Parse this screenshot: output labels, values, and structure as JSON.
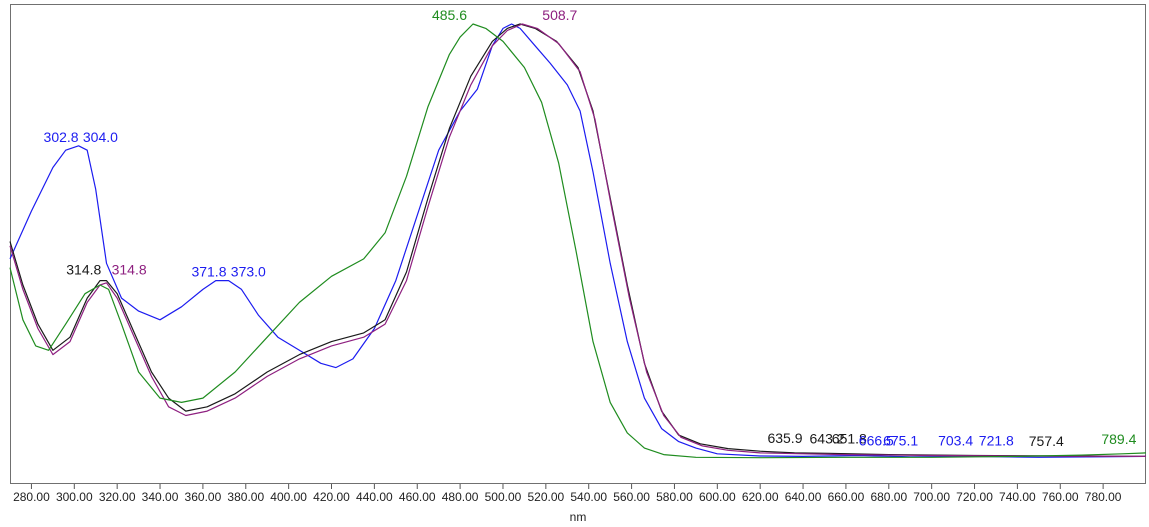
{
  "chart_data": {
    "type": "line",
    "xlabel": "nm",
    "ylabel": "",
    "xlim": [
      270,
      800
    ],
    "ylim": [
      0,
      1
    ],
    "grid": false,
    "x_ticks": [
      "280.00",
      "300.00",
      "320.00",
      "340.00",
      "360.00",
      "380.00",
      "400.00",
      "420.00",
      "440.00",
      "460.00",
      "480.00",
      "500.00",
      "520.00",
      "540.00",
      "560.00",
      "580.00",
      "600.00",
      "620.00",
      "640.00",
      "660.00",
      "680.00",
      "700.00",
      "720.00",
      "740.00",
      "760.00",
      "780.00"
    ],
    "x_tick_values": [
      280,
      300,
      320,
      340,
      360,
      380,
      400,
      420,
      440,
      460,
      480,
      500,
      520,
      540,
      560,
      580,
      600,
      620,
      640,
      660,
      680,
      700,
      720,
      740,
      760,
      780
    ],
    "series": [
      {
        "color": "#1c1cf0",
        "points": [
          [
            270,
            0.46
          ],
          [
            280,
            0.57
          ],
          [
            290,
            0.67
          ],
          [
            296,
            0.71
          ],
          [
            302,
            0.72
          ],
          [
            306,
            0.71
          ],
          [
            310,
            0.62
          ],
          [
            315,
            0.45
          ],
          [
            322,
            0.37
          ],
          [
            330,
            0.34
          ],
          [
            340,
            0.32
          ],
          [
            350,
            0.35
          ],
          [
            360,
            0.39
          ],
          [
            366,
            0.41
          ],
          [
            372,
            0.41
          ],
          [
            378,
            0.39
          ],
          [
            386,
            0.33
          ],
          [
            395,
            0.28
          ],
          [
            405,
            0.25
          ],
          [
            415,
            0.22
          ],
          [
            422,
            0.21
          ],
          [
            430,
            0.23
          ],
          [
            440,
            0.3
          ],
          [
            450,
            0.41
          ],
          [
            460,
            0.56
          ],
          [
            470,
            0.71
          ],
          [
            480,
            0.8
          ],
          [
            488,
            0.85
          ],
          [
            495,
            0.95
          ],
          [
            500,
            0.99
          ],
          [
            504,
            1.0
          ],
          [
            508,
            0.99
          ],
          [
            515,
            0.95
          ],
          [
            522,
            0.91
          ],
          [
            530,
            0.86
          ],
          [
            536,
            0.8
          ],
          [
            542,
            0.66
          ],
          [
            550,
            0.45
          ],
          [
            558,
            0.27
          ],
          [
            566,
            0.14
          ],
          [
            574,
            0.07
          ],
          [
            582,
            0.04
          ],
          [
            590,
            0.025
          ],
          [
            600,
            0.012
          ],
          [
            620,
            0.007
          ],
          [
            640,
            0.006
          ],
          [
            666,
            0.008
          ],
          [
            690,
            0.005
          ],
          [
            720,
            0.006
          ],
          [
            750,
            0.004
          ],
          [
            780,
            0.005
          ],
          [
            800,
            0.006
          ]
        ]
      },
      {
        "color": "#1a1a1a",
        "points": [
          [
            270,
            0.5
          ],
          [
            276,
            0.4
          ],
          [
            283,
            0.31
          ],
          [
            290,
            0.25
          ],
          [
            298,
            0.28
          ],
          [
            306,
            0.37
          ],
          [
            312,
            0.41
          ],
          [
            315,
            0.41
          ],
          [
            320,
            0.38
          ],
          [
            328,
            0.29
          ],
          [
            336,
            0.2
          ],
          [
            344,
            0.14
          ],
          [
            352,
            0.11
          ],
          [
            362,
            0.12
          ],
          [
            375,
            0.15
          ],
          [
            390,
            0.2
          ],
          [
            405,
            0.24
          ],
          [
            420,
            0.27
          ],
          [
            435,
            0.29
          ],
          [
            445,
            0.32
          ],
          [
            455,
            0.43
          ],
          [
            465,
            0.6
          ],
          [
            475,
            0.76
          ],
          [
            485,
            0.88
          ],
          [
            495,
            0.96
          ],
          [
            502,
            0.99
          ],
          [
            508,
            1.0
          ],
          [
            515,
            0.99
          ],
          [
            525,
            0.96
          ],
          [
            535,
            0.9
          ],
          [
            542,
            0.8
          ],
          [
            550,
            0.6
          ],
          [
            558,
            0.4
          ],
          [
            566,
            0.22
          ],
          [
            574,
            0.11
          ],
          [
            582,
            0.055
          ],
          [
            592,
            0.035
          ],
          [
            605,
            0.024
          ],
          [
            620,
            0.018
          ],
          [
            636,
            0.014
          ],
          [
            652,
            0.013
          ],
          [
            680,
            0.01
          ],
          [
            720,
            0.008
          ],
          [
            757,
            0.007
          ],
          [
            800,
            0.006
          ]
        ]
      },
      {
        "color": "#8e2080",
        "points": [
          [
            270,
            0.49
          ],
          [
            276,
            0.39
          ],
          [
            283,
            0.3
          ],
          [
            290,
            0.24
          ],
          [
            298,
            0.27
          ],
          [
            306,
            0.36
          ],
          [
            312,
            0.4
          ],
          [
            315,
            0.405
          ],
          [
            320,
            0.37
          ],
          [
            328,
            0.28
          ],
          [
            336,
            0.19
          ],
          [
            344,
            0.12
          ],
          [
            352,
            0.1
          ],
          [
            362,
            0.11
          ],
          [
            375,
            0.14
          ],
          [
            390,
            0.19
          ],
          [
            405,
            0.23
          ],
          [
            420,
            0.26
          ],
          [
            435,
            0.28
          ],
          [
            445,
            0.31
          ],
          [
            455,
            0.41
          ],
          [
            465,
            0.58
          ],
          [
            475,
            0.74
          ],
          [
            485,
            0.86
          ],
          [
            495,
            0.95
          ],
          [
            502,
            0.985
          ],
          [
            509,
            1.0
          ],
          [
            516,
            0.99
          ],
          [
            526,
            0.955
          ],
          [
            536,
            0.89
          ],
          [
            543,
            0.78
          ],
          [
            551,
            0.57
          ],
          [
            559,
            0.37
          ],
          [
            567,
            0.2
          ],
          [
            575,
            0.1
          ],
          [
            583,
            0.05
          ],
          [
            593,
            0.03
          ],
          [
            605,
            0.02
          ],
          [
            620,
            0.014
          ],
          [
            640,
            0.012
          ],
          [
            660,
            0.01
          ],
          [
            700,
            0.008
          ],
          [
            740,
            0.007
          ],
          [
            800,
            0.006
          ]
        ]
      },
      {
        "color": "#1f8c1f",
        "points": [
          [
            270,
            0.44
          ],
          [
            276,
            0.32
          ],
          [
            282,
            0.26
          ],
          [
            288,
            0.25
          ],
          [
            296,
            0.31
          ],
          [
            305,
            0.38
          ],
          [
            312,
            0.4
          ],
          [
            316,
            0.39
          ],
          [
            322,
            0.31
          ],
          [
            330,
            0.2
          ],
          [
            340,
            0.14
          ],
          [
            350,
            0.13
          ],
          [
            360,
            0.14
          ],
          [
            375,
            0.2
          ],
          [
            390,
            0.28
          ],
          [
            405,
            0.36
          ],
          [
            420,
            0.42
          ],
          [
            435,
            0.46
          ],
          [
            445,
            0.52
          ],
          [
            455,
            0.65
          ],
          [
            465,
            0.81
          ],
          [
            475,
            0.93
          ],
          [
            480,
            0.97
          ],
          [
            486,
            1.0
          ],
          [
            492,
            0.99
          ],
          [
            500,
            0.96
          ],
          [
            510,
            0.9
          ],
          [
            518,
            0.82
          ],
          [
            526,
            0.68
          ],
          [
            534,
            0.48
          ],
          [
            542,
            0.27
          ],
          [
            550,
            0.13
          ],
          [
            558,
            0.06
          ],
          [
            566,
            0.025
          ],
          [
            575,
            0.01
          ],
          [
            590,
            0.004
          ],
          [
            620,
            0.003
          ],
          [
            660,
            0.004
          ],
          [
            700,
            0.004
          ],
          [
            740,
            0.006
          ],
          [
            770,
            0.009
          ],
          [
            789,
            0.012
          ],
          [
            800,
            0.014
          ]
        ]
      }
    ],
    "peak_labels": [
      {
        "text": "485.6",
        "x": 486,
        "y": 1.0,
        "color": "#1f8c1f",
        "anchor": "end",
        "dx": -6,
        "dy": -4
      },
      {
        "text": "508.7",
        "x": 509,
        "y": 1.0,
        "color": "#8e2080",
        "anchor": "start",
        "dx": 20,
        "dy": -4
      },
      {
        "text": "302.8",
        "x": 302,
        "y": 0.72,
        "color": "#1c1cf0",
        "anchor": "end",
        "dx": 0,
        "dy": -4
      },
      {
        "text": "304.0",
        "x": 304,
        "y": 0.72,
        "color": "#1c1cf0",
        "anchor": "start",
        "dx": 0,
        "dy": -4
      },
      {
        "text": "314.8",
        "x": 314,
        "y": 0.41,
        "color": "#1a1a1a",
        "anchor": "end",
        "dx": -3,
        "dy": -6
      },
      {
        "text": "314.8",
        "x": 316,
        "y": 0.41,
        "color": "#8e2080",
        "anchor": "start",
        "dx": 3,
        "dy": -6
      },
      {
        "text": "371.8",
        "x": 371,
        "y": 0.41,
        "color": "#1c1cf0",
        "anchor": "end",
        "dx": 0,
        "dy": -4
      },
      {
        "text": "373.0",
        "x": 373,
        "y": 0.41,
        "color": "#1c1cf0",
        "anchor": "start",
        "dx": 0,
        "dy": -4
      },
      {
        "text": "635.9",
        "x": 636,
        "y": 0.014,
        "color": "#1a1a1a",
        "anchor": "end",
        "dx": 8,
        "dy": -10
      },
      {
        "text": "643.2",
        "x": 643,
        "y": 0.013,
        "color": "#1a1a1a",
        "anchor": "start",
        "dx": 0,
        "dy": -10
      },
      {
        "text": "651.8",
        "x": 652,
        "y": 0.013,
        "color": "#1a1a1a",
        "anchor": "start",
        "dx": 3,
        "dy": -10
      },
      {
        "text": "666.5",
        "x": 666,
        "y": 0.008,
        "color": "#1c1cf0",
        "anchor": "start",
        "dx": 0,
        "dy": -10
      },
      {
        "text": "675.1",
        "x": 675,
        "y": 0.008,
        "color": "#1c1cf0",
        "anchor": "start",
        "dx": 5,
        "dy": -10
      },
      {
        "text": "703.4",
        "x": 703,
        "y": 0.008,
        "color": "#1c1cf0",
        "anchor": "start",
        "dx": 0,
        "dy": -10
      },
      {
        "text": "721.8",
        "x": 722,
        "y": 0.008,
        "color": "#1c1cf0",
        "anchor": "start",
        "dx": 0,
        "dy": -10
      },
      {
        "text": "757.4",
        "x": 757,
        "y": 0.007,
        "color": "#1a1a1a",
        "anchor": "end",
        "dx": 10,
        "dy": -10
      },
      {
        "text": "789.4",
        "x": 789,
        "y": 0.012,
        "color": "#1f8c1f",
        "anchor": "end",
        "dx": 14,
        "dy": -10
      }
    ]
  }
}
